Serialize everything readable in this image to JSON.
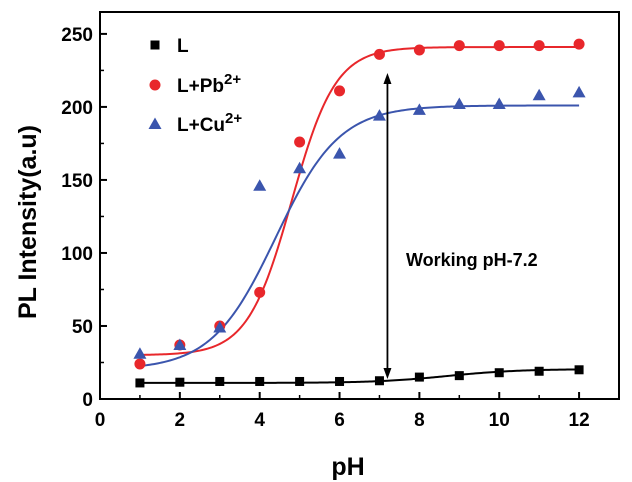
{
  "chart_data": {
    "type": "scatter",
    "xlabel": "pH",
    "ylabel": "PL Intensity(a.u)",
    "xlim": [
      0,
      13
    ],
    "ylim": [
      0,
      265
    ],
    "xticks": [
      "0",
      "2",
      "4",
      "6",
      "8",
      "10",
      "12"
    ],
    "yticks": [
      "0",
      "50",
      "100",
      "150",
      "200",
      "250"
    ],
    "grid": false,
    "legend_position": "top-left",
    "annotation": "Working pH-7.2",
    "annotation_x": 7.2,
    "series": [
      {
        "name": "L",
        "marker": "square",
        "color": "#000000",
        "x": [
          1,
          2,
          3,
          4,
          5,
          6,
          7,
          8,
          9,
          10,
          11,
          12
        ],
        "y": [
          11,
          11.5,
          12,
          12,
          12,
          12,
          12.5,
          15,
          16,
          18,
          19,
          20
        ]
      },
      {
        "name": "L+Pb2+",
        "legend_base": "L+Pb",
        "legend_sup": "2+",
        "marker": "circle",
        "color": "#e8272b",
        "x": [
          1,
          2,
          3,
          4,
          5,
          6,
          7,
          8,
          9,
          10,
          11,
          12
        ],
        "y": [
          24,
          37,
          50,
          73,
          176,
          211,
          236,
          239,
          242,
          242,
          242,
          243
        ]
      },
      {
        "name": "L+Cu2+",
        "legend_base": "L+Cu",
        "legend_sup": "2+",
        "marker": "triangle",
        "color": "#3b55ad",
        "x": [
          1,
          2,
          3,
          4,
          5,
          6,
          7,
          8,
          9,
          10,
          11,
          12
        ],
        "y": [
          31,
          37,
          49,
          146,
          158,
          168,
          194,
          198,
          202,
          202,
          208,
          210
        ]
      }
    ],
    "fits": [
      {
        "series": "L",
        "color": "#000000",
        "A1": 11,
        "A2": 20.5,
        "x0": 8.7,
        "dx": 0.9
      },
      {
        "series": "L+Pb2+",
        "color": "#e8272b",
        "A1": 30,
        "A2": 241,
        "x0": 4.8,
        "dx": 0.55
      },
      {
        "series": "L+Cu2+",
        "color": "#3b55ad",
        "A1": 20,
        "A2": 201,
        "x0": 4.4,
        "dx": 0.8
      }
    ]
  }
}
